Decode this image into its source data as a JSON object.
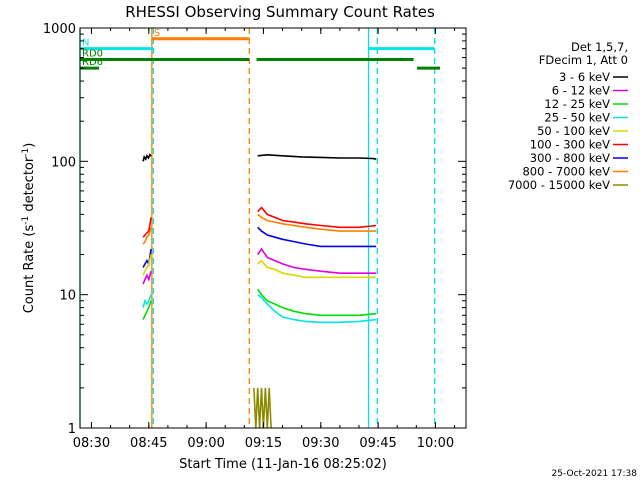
{
  "chart_data": {
    "type": "line",
    "title": "RHESSI Observing Summary Count Rates",
    "xlabel": "Start Time (11-Jan-16 08:25:02)",
    "ylabel_main": "Count Rate (s",
    "ylabel_sup1": "-1",
    "ylabel_mid": " detector",
    "ylabel_sup2": "-1",
    "ylabel_end": ")",
    "y_scale": "log",
    "ylim": [
      1,
      1000
    ],
    "xlim_minutes": [
      507,
      608
    ],
    "x_ticks": [
      {
        "label": "08:30",
        "min": 510
      },
      {
        "label": "08:45",
        "min": 525
      },
      {
        "label": "09:00",
        "min": 540
      },
      {
        "label": "09:15",
        "min": 555
      },
      {
        "label": "09:30",
        "min": 570
      },
      {
        "label": "09:45",
        "min": 585
      },
      {
        "label": "10:00",
        "min": 600
      }
    ],
    "y_ticks": [
      {
        "label": "1",
        "value": 1
      },
      {
        "label": "10",
        "value": 10
      },
      {
        "label": "100",
        "value": 100
      },
      {
        "label": "1000",
        "value": 1000
      }
    ],
    "legend_header": [
      "Det 1,5,7,",
      "FDecim 1, Att 0"
    ],
    "legend_placement": "right",
    "series": [
      {
        "name": "3 - 6 keV",
        "color": "#000000",
        "segments": [
          {
            "t": [
              523.5,
              523.8,
              524.2,
              524.5,
              524.9,
              525.3,
              525.6
            ],
            "y": [
              100,
              108,
              104,
              110,
              106,
              112,
              109
            ]
          },
          {
            "t": [
              553.5,
              556,
              560,
              565,
              570,
              575,
              580,
              583.5,
              584.5
            ],
            "y": [
              110,
              112,
              110,
              108,
              107,
              106,
              106,
              105,
              104
            ]
          }
        ]
      },
      {
        "name": "6 - 12 keV",
        "color": "#e000e0",
        "segments": [
          {
            "t": [
              523.5,
              524,
              524.5,
              525,
              525.6
            ],
            "y": [
              12,
              13,
              14,
              13,
              15
            ]
          },
          {
            "t": [
              553.5,
              554.5,
              556,
              558,
              560,
              563,
              566,
              570,
              575,
              580,
              584.5
            ],
            "y": [
              20,
              22,
              19,
              18,
              17,
              16,
              15.5,
              15,
              14.5,
              14.5,
              14.5
            ]
          }
        ]
      },
      {
        "name": "12 - 25 keV",
        "color": "#00dd00",
        "segments": [
          {
            "t": [
              523.5,
              524,
              524.5,
              525,
              525.6
            ],
            "y": [
              6.5,
              7,
              7.5,
              8,
              9
            ]
          },
          {
            "t": [
              553.5,
              554.5,
              556,
              558,
              560,
              563,
              566,
              570,
              575,
              580,
              584.5
            ],
            "y": [
              11,
              10,
              9,
              8.5,
              8,
              7.5,
              7.2,
              7,
              7,
              7,
              7.2
            ]
          }
        ]
      },
      {
        "name": "25 - 50 keV",
        "color": "#00e5e5",
        "segments": [
          {
            "t": [
              523.5,
              524,
              524.5,
              525,
              525.6
            ],
            "y": [
              8,
              9,
              8.5,
              9,
              10
            ]
          },
          {
            "t": [
              553.5,
              554.5,
              556,
              558,
              560,
              563,
              566,
              570,
              575,
              580,
              584.5
            ],
            "y": [
              10,
              9.5,
              8.5,
              7.5,
              6.8,
              6.5,
              6.3,
              6.2,
              6.2,
              6.3,
              6.5
            ]
          }
        ]
      },
      {
        "name": "50 - 100 keV",
        "color": "#d8d800",
        "segments": [
          {
            "t": [
              523.5,
              524,
              524.5,
              525,
              525.6
            ],
            "y": [
              14,
              15,
              16,
              17,
              20
            ]
          },
          {
            "t": [
              553.5,
              554.5,
              556,
              558,
              560,
              563,
              566,
              570,
              575,
              580,
              584.5
            ],
            "y": [
              17,
              18,
              16,
              15.5,
              14.5,
              14,
              13.5,
              13.5,
              13.5,
              13.5,
              13.5
            ]
          }
        ]
      },
      {
        "name": "100 - 300 keV",
        "color": "#ff0000",
        "segments": [
          {
            "t": [
              523.5,
              524,
              524.5,
              525,
              525.6
            ],
            "y": [
              27,
              28,
              29,
              30,
              38
            ]
          },
          {
            "t": [
              553.5,
              554.5,
              556,
              558,
              560,
              563,
              566,
              570,
              575,
              580,
              584.5
            ],
            "y": [
              42,
              45,
              40,
              38,
              36,
              35,
              34,
              33,
              32,
              32,
              33
            ]
          }
        ]
      },
      {
        "name": "300 - 800 keV",
        "color": "#0000ee",
        "segments": [
          {
            "t": [
              523.5,
              524,
              524.5,
              525,
              525.6
            ],
            "y": [
              16,
              17,
              18,
              17,
              22
            ]
          },
          {
            "t": [
              553.5,
              554.5,
              556,
              558,
              560,
              563,
              566,
              570,
              575,
              580,
              584.5
            ],
            "y": [
              32,
              30,
              28,
              27,
              26,
              25,
              24,
              23,
              23,
              23,
              23
            ]
          }
        ]
      },
      {
        "name": "800 - 7000 keV",
        "color": "#ff8000",
        "segments": [
          {
            "t": [
              523.5,
              524,
              524.5,
              525,
              525.6
            ],
            "y": [
              24,
              25,
              27,
              28,
              32
            ]
          },
          {
            "t": [
              553.5,
              554.5,
              556,
              558,
              560,
              563,
              566,
              570,
              575,
              580,
              584.5
            ],
            "y": [
              40,
              38,
              36,
              35,
              34,
              33,
              32,
              31,
              30,
              30,
              30
            ]
          }
        ]
      },
      {
        "name": "7000 - 15000 keV",
        "color": "#8b8b00",
        "segments": [
          {
            "t": [
              552.5,
              553.0,
              553.5,
              554.0,
              554.5,
              555.0,
              555.5,
              556.0,
              556.5,
              557.0
            ],
            "y": [
              2,
              1,
              2,
              1,
              2,
              1,
              2,
              1,
              2,
              1
            ]
          }
        ]
      }
    ],
    "flag_bars": [
      {
        "label": "S",
        "color": "#ff8000",
        "t_start": 525.8,
        "t_end": 551.3,
        "level": 830
      },
      {
        "label": "N",
        "color": "#00e5e5",
        "t_start": 507,
        "t_end": 526.2,
        "level": 700
      },
      {
        "label": "",
        "color": "#00e5e5",
        "t_start": 582.5,
        "t_end": 599.8,
        "level": 700
      },
      {
        "label": "RD0",
        "color": "#008000",
        "t_start": 507,
        "t_end": 551.3,
        "level": 580
      },
      {
        "label": "",
        "color": "#008000",
        "t_start": 553.2,
        "t_end": 594.3,
        "level": 580
      },
      {
        "label": "",
        "color": "#008000",
        "t_start": 595.2,
        "t_end": 601.2,
        "level": 500
      },
      {
        "label": "RD6",
        "color": "#008000",
        "t_start": 507,
        "t_end": 512.0,
        "level": 500
      }
    ],
    "vlines": [
      {
        "t": 507,
        "color": "#00e5e5",
        "style": "solid"
      },
      {
        "t": 525.8,
        "color": "#ff8000",
        "style": "solid"
      },
      {
        "t": 526.2,
        "color": "#00e5e5",
        "style": "dashed"
      },
      {
        "t": 551.3,
        "color": "#ff8000",
        "style": "dashed"
      },
      {
        "t": 582.5,
        "color": "#00e5e5",
        "style": "solid"
      },
      {
        "t": 584.8,
        "color": "#00e5e5",
        "style": "dashed"
      },
      {
        "t": 599.8,
        "color": "#00e5e5",
        "style": "dashed"
      }
    ]
  },
  "footer_timestamp": "25-Oct-2021 17:38"
}
